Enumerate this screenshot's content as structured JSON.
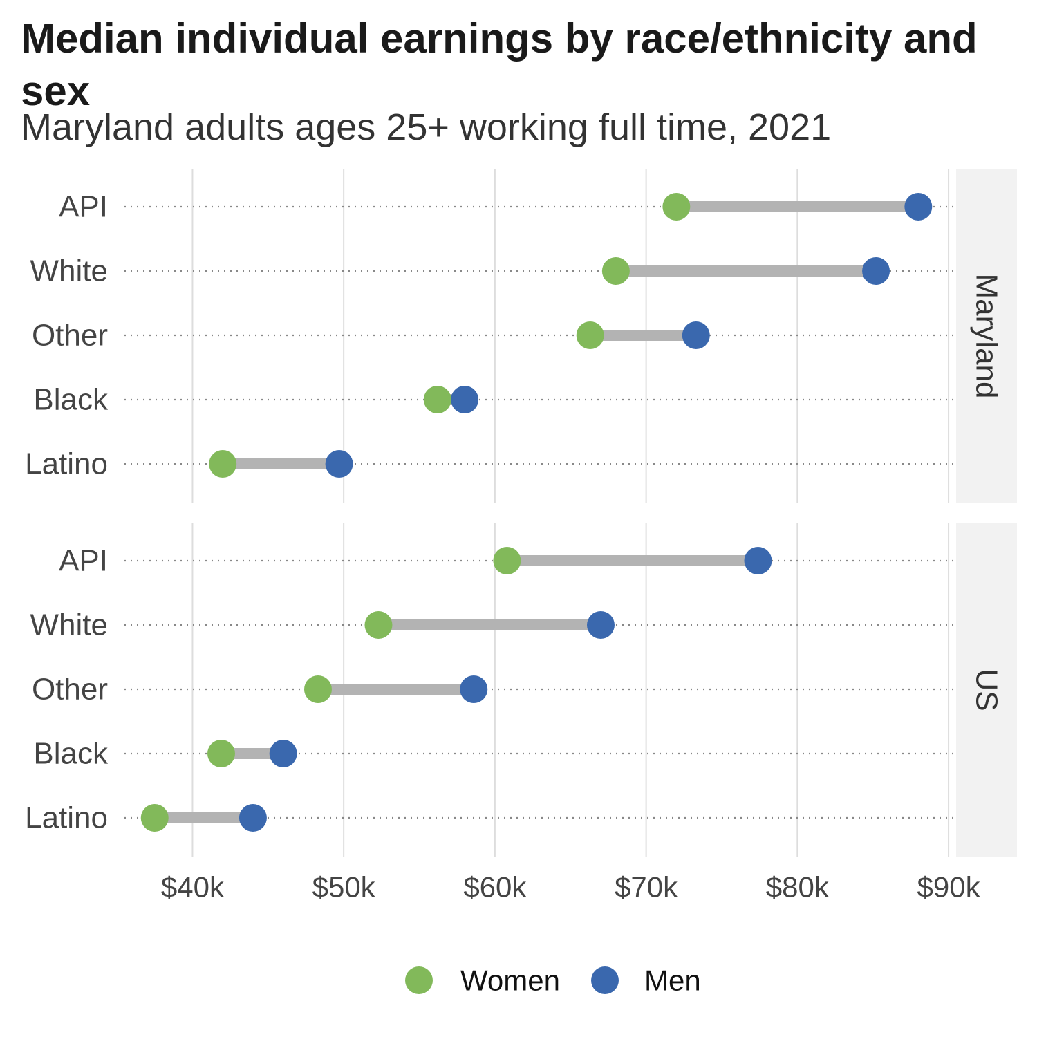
{
  "chart_data": {
    "type": "dumbbell",
    "title": "Median individual earnings by race/ethnicity and sex",
    "subtitle": "Maryland adults ages 25+ working full time, 2021",
    "x_ticks": [
      "$40k",
      "$50k",
      "$60k",
      "$70k",
      "$80k",
      "$90k"
    ],
    "x_tick_values": [
      40000,
      50000,
      60000,
      70000,
      80000,
      90000
    ],
    "xlim": [
      35500,
      90500
    ],
    "categories": [
      "API",
      "White",
      "Other",
      "Black",
      "Latino"
    ],
    "series": [
      {
        "name": "Women",
        "color": "#82b95a"
      },
      {
        "name": "Men",
        "color": "#3a68ae"
      }
    ],
    "legend_position": "bottom",
    "grid": true,
    "panels": [
      {
        "label": "Maryland",
        "rows": [
          {
            "category": "API",
            "women": 72000,
            "men": 88000
          },
          {
            "category": "White",
            "women": 68000,
            "men": 85200
          },
          {
            "category": "Other",
            "women": 66300,
            "men": 73300
          },
          {
            "category": "Black",
            "women": 56200,
            "men": 58000
          },
          {
            "category": "Latino",
            "women": 42000,
            "men": 49700
          }
        ]
      },
      {
        "label": "US",
        "rows": [
          {
            "category": "API",
            "women": 60800,
            "men": 77400
          },
          {
            "category": "White",
            "women": 52300,
            "men": 67000
          },
          {
            "category": "Other",
            "women": 48300,
            "men": 58600
          },
          {
            "category": "Black",
            "women": 41900,
            "men": 46000
          },
          {
            "category": "Latino",
            "women": 37500,
            "men": 44000
          }
        ]
      }
    ]
  }
}
